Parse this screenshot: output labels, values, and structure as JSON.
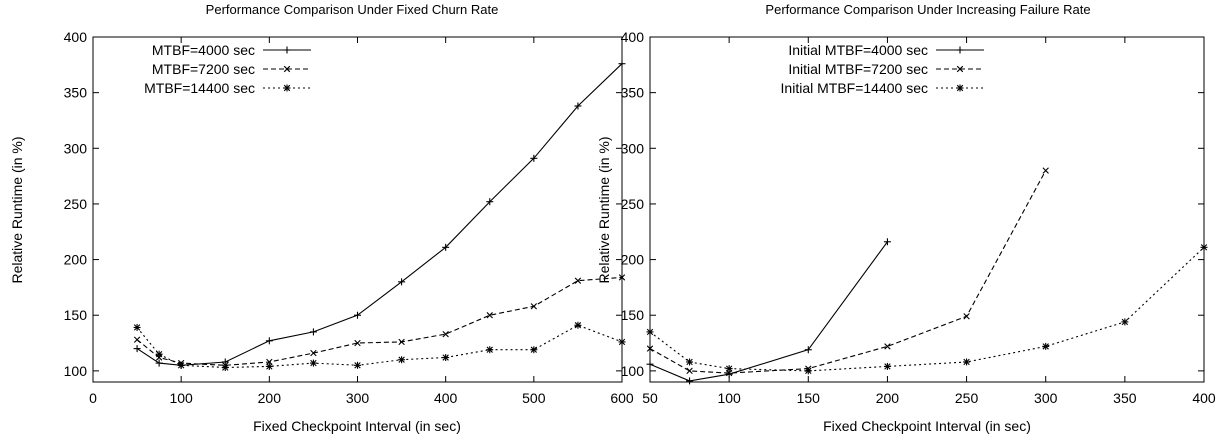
{
  "chart_data": [
    {
      "type": "line",
      "title": "Performance Comparison Under Fixed Churn Rate",
      "xlabel": "Fixed Checkpoint Interval (in sec)",
      "ylabel": "Relative Runtime (in %)",
      "xlim": [
        0,
        600
      ],
      "ylim": [
        90,
        400
      ],
      "xticks": [
        0,
        100,
        200,
        300,
        400,
        500,
        600
      ],
      "yticks": [
        100,
        150,
        200,
        250,
        300,
        350,
        400
      ],
      "grid": false,
      "legend": "top-left",
      "series": [
        {
          "name": "MTBF=4000 sec",
          "marker": "plus",
          "dash": "solid",
          "x": [
            50,
            75,
            100,
            150,
            200,
            250,
            300,
            350,
            400,
            450,
            500,
            550,
            600
          ],
          "y": [
            120,
            107,
            105,
            108,
            127,
            135,
            150,
            180,
            211,
            252,
            291,
            338,
            376
          ]
        },
        {
          "name": "MTBF=7200 sec",
          "marker": "x",
          "dash": "dashed",
          "x": [
            50,
            75,
            100,
            150,
            200,
            250,
            300,
            350,
            400,
            450,
            500,
            550,
            600
          ],
          "y": [
            128,
            112,
            107,
            105,
            108,
            116,
            125,
            126,
            133,
            150,
            158,
            181,
            184
          ]
        },
        {
          "name": "MTBF=14400 sec",
          "marker": "star",
          "dash": "dotted",
          "x": [
            50,
            75,
            100,
            150,
            200,
            250,
            300,
            350,
            400,
            450,
            500,
            550,
            600
          ],
          "y": [
            139,
            115,
            105,
            103,
            104,
            107,
            105,
            110,
            112,
            119,
            119,
            141,
            126
          ]
        }
      ]
    },
    {
      "type": "line",
      "title": "Performance Comparison Under Increasing Failure Rate",
      "xlabel": "Fixed Checkpoint Interval (in sec)",
      "ylabel": "Relative Runtime (in %)",
      "xlim": [
        50,
        400
      ],
      "ylim": [
        90,
        400
      ],
      "xticks": [
        50,
        100,
        150,
        200,
        250,
        300,
        350,
        400
      ],
      "yticks": [
        100,
        150,
        200,
        250,
        300,
        350,
        400
      ],
      "grid": false,
      "legend": "top-left",
      "series": [
        {
          "name": "Initial MTBF=4000 sec",
          "marker": "plus",
          "dash": "solid",
          "x": [
            50,
            75,
            100,
            150,
            200
          ],
          "y": [
            106,
            91,
            97,
            119,
            216
          ]
        },
        {
          "name": "Initial MTBF=7200 sec",
          "marker": "x",
          "dash": "dashed",
          "x": [
            50,
            75,
            100,
            150,
            200,
            250,
            300
          ],
          "y": [
            120,
            100,
            98,
            102,
            122,
            149,
            280
          ]
        },
        {
          "name": "Initial MTBF=14400 sec",
          "marker": "star",
          "dash": "dotted",
          "x": [
            50,
            75,
            100,
            150,
            200,
            250,
            300,
            350,
            400
          ],
          "y": [
            135,
            108,
            102,
            100,
            104,
            108,
            122,
            144,
            211
          ]
        }
      ]
    }
  ]
}
